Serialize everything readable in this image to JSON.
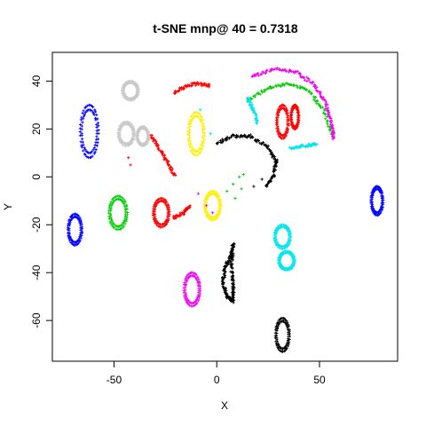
{
  "chart_data": {
    "type": "scatter",
    "title": "t-SNE mnp@ 40 = 0.7318",
    "xlabel": "X",
    "ylabel": "Y",
    "xlim": [
      -80,
      88
    ],
    "ylim": [
      -77,
      52
    ],
    "xticks": [
      -50,
      0,
      50
    ],
    "yticks": [
      -60,
      -40,
      -20,
      0,
      20,
      40
    ],
    "grid": false,
    "legend": "none",
    "marker": "small-cross",
    "series": [
      {
        "color": "#0000ff",
        "clusters": [
          {
            "shape": "ellipse",
            "center": [
              -62,
              19
            ],
            "radius": [
              4.5,
              11
            ]
          },
          {
            "shape": "ellipse",
            "center": [
              -69,
              -22
            ],
            "radius": [
              3.5,
              6.5
            ]
          },
          {
            "shape": "ellipse",
            "center": [
              78,
              -10
            ],
            "radius": [
              3,
              6
            ]
          }
        ]
      },
      {
        "color": "#00cc00",
        "clusters": [
          {
            "shape": "ellipse",
            "center": [
              -48,
              -15
            ],
            "radius": [
              4.5,
              7
            ]
          },
          {
            "shape": "points",
            "points": [
              [
                5,
                -6
              ],
              [
                8,
                -3
              ],
              [
                12,
                -5
              ],
              [
                9,
                -9
              ],
              [
                11,
                0
              ],
              [
                13,
                1
              ]
            ]
          },
          {
            "shape": "curve",
            "points": [
              [
                15,
                32
              ],
              [
                25,
                37
              ],
              [
                35,
                39
              ],
              [
                45,
                36
              ],
              [
                52,
                28
              ],
              [
                56,
                17
              ]
            ]
          }
        ]
      },
      {
        "color": "#ff0000",
        "clusters": [
          {
            "shape": "ellipse",
            "center": [
              -27,
              -15
            ],
            "radius": [
              4,
              6
            ]
          },
          {
            "shape": "curve",
            "points": [
              [
                -21,
                -17
              ],
              [
                -16,
                -15
              ],
              [
                -13,
                -12
              ]
            ]
          },
          {
            "shape": "curve",
            "points": [
              [
                -21,
                35
              ],
              [
                -15,
                38
              ],
              [
                -9,
                39
              ],
              [
                -3,
                38
              ]
            ]
          },
          {
            "shape": "curve",
            "points": [
              [
                -32,
                17
              ],
              [
                -28,
                12
              ],
              [
                -24,
                6
              ],
              [
                -20,
                0
              ]
            ]
          },
          {
            "shape": "ellipse",
            "center": [
              32,
              23
            ],
            "radius": [
              3,
              7
            ]
          },
          {
            "shape": "ellipse",
            "center": [
              38,
              25
            ],
            "radius": [
              2,
              5
            ]
          },
          {
            "shape": "points",
            "points": [
              [
                -43,
                8
              ],
              [
                -42,
                5
              ]
            ]
          }
        ]
      },
      {
        "color": "#ffee00",
        "clusters": [
          {
            "shape": "ellipse",
            "center": [
              -10,
              18
            ],
            "radius": [
              4,
              9
            ]
          },
          {
            "shape": "ellipse",
            "center": [
              -2,
              -12
            ],
            "radius": [
              4,
              6
            ]
          }
        ]
      },
      {
        "color": "#c8c8c8",
        "clusters": [
          {
            "shape": "ellipse",
            "center": [
              -42,
              36
            ],
            "radius": [
              4,
              4
            ]
          },
          {
            "shape": "ellipse",
            "center": [
              -44,
              18
            ],
            "radius": [
              4,
              5
            ]
          },
          {
            "shape": "ellipse",
            "center": [
              -36,
              17
            ],
            "radius": [
              3,
              4
            ]
          }
        ]
      },
      {
        "color": "#00e5ee",
        "clusters": [
          {
            "shape": "ellipse",
            "center": [
              32,
              -25
            ],
            "radius": [
              4,
              5
            ]
          },
          {
            "shape": "ellipse",
            "center": [
              34,
              -35
            ],
            "radius": [
              4,
              4
            ]
          },
          {
            "shape": "curve",
            "points": [
              [
                15,
                33
              ],
              [
                18,
                28
              ],
              [
                20,
                22
              ]
            ]
          },
          {
            "shape": "curve",
            "points": [
              [
                36,
                12
              ],
              [
                43,
                13
              ],
              [
                49,
                14
              ]
            ]
          },
          {
            "shape": "points",
            "points": [
              [
                -3,
                18
              ],
              [
                -8,
                28
              ]
            ]
          }
        ]
      },
      {
        "color": "#ee00ee",
        "clusters": [
          {
            "shape": "curve",
            "points": [
              [
                17,
                42
              ],
              [
                28,
                45
              ],
              [
                38,
                44
              ],
              [
                47,
                39
              ],
              [
                53,
                31
              ],
              [
                56,
                22
              ],
              [
                57,
                15
              ]
            ]
          },
          {
            "shape": "ellipse",
            "center": [
              -12,
              -47
            ],
            "radius": [
              4,
              7
            ]
          },
          {
            "shape": "points",
            "points": [
              [
                -9,
                -7
              ],
              [
                -5,
                -12
              ],
              [
                -2,
                -15
              ]
            ]
          }
        ]
      },
      {
        "color": "#000000",
        "clusters": [
          {
            "shape": "curve",
            "points": [
              [
                0,
                14
              ],
              [
                8,
                17
              ],
              [
                16,
                17
              ],
              [
                24,
                13
              ],
              [
                29,
                7
              ],
              [
                28,
                1
              ],
              [
                24,
                -4
              ]
            ]
          },
          {
            "shape": "curve",
            "points": [
              [
                8,
                -28
              ],
              [
                7,
                -33
              ],
              [
                4,
                -38
              ],
              [
                3,
                -44
              ],
              [
                5,
                -50
              ],
              [
                8,
                -52
              ],
              [
                8,
                -45
              ],
              [
                7,
                -38
              ],
              [
                8,
                -30
              ]
            ]
          },
          {
            "shape": "ellipse",
            "center": [
              32,
              -66
            ],
            "radius": [
              3.5,
              7
            ]
          },
          {
            "shape": "points",
            "points": [
              [
                22,
                -1
              ],
              [
                18,
                -4
              ]
            ]
          }
        ]
      }
    ]
  }
}
